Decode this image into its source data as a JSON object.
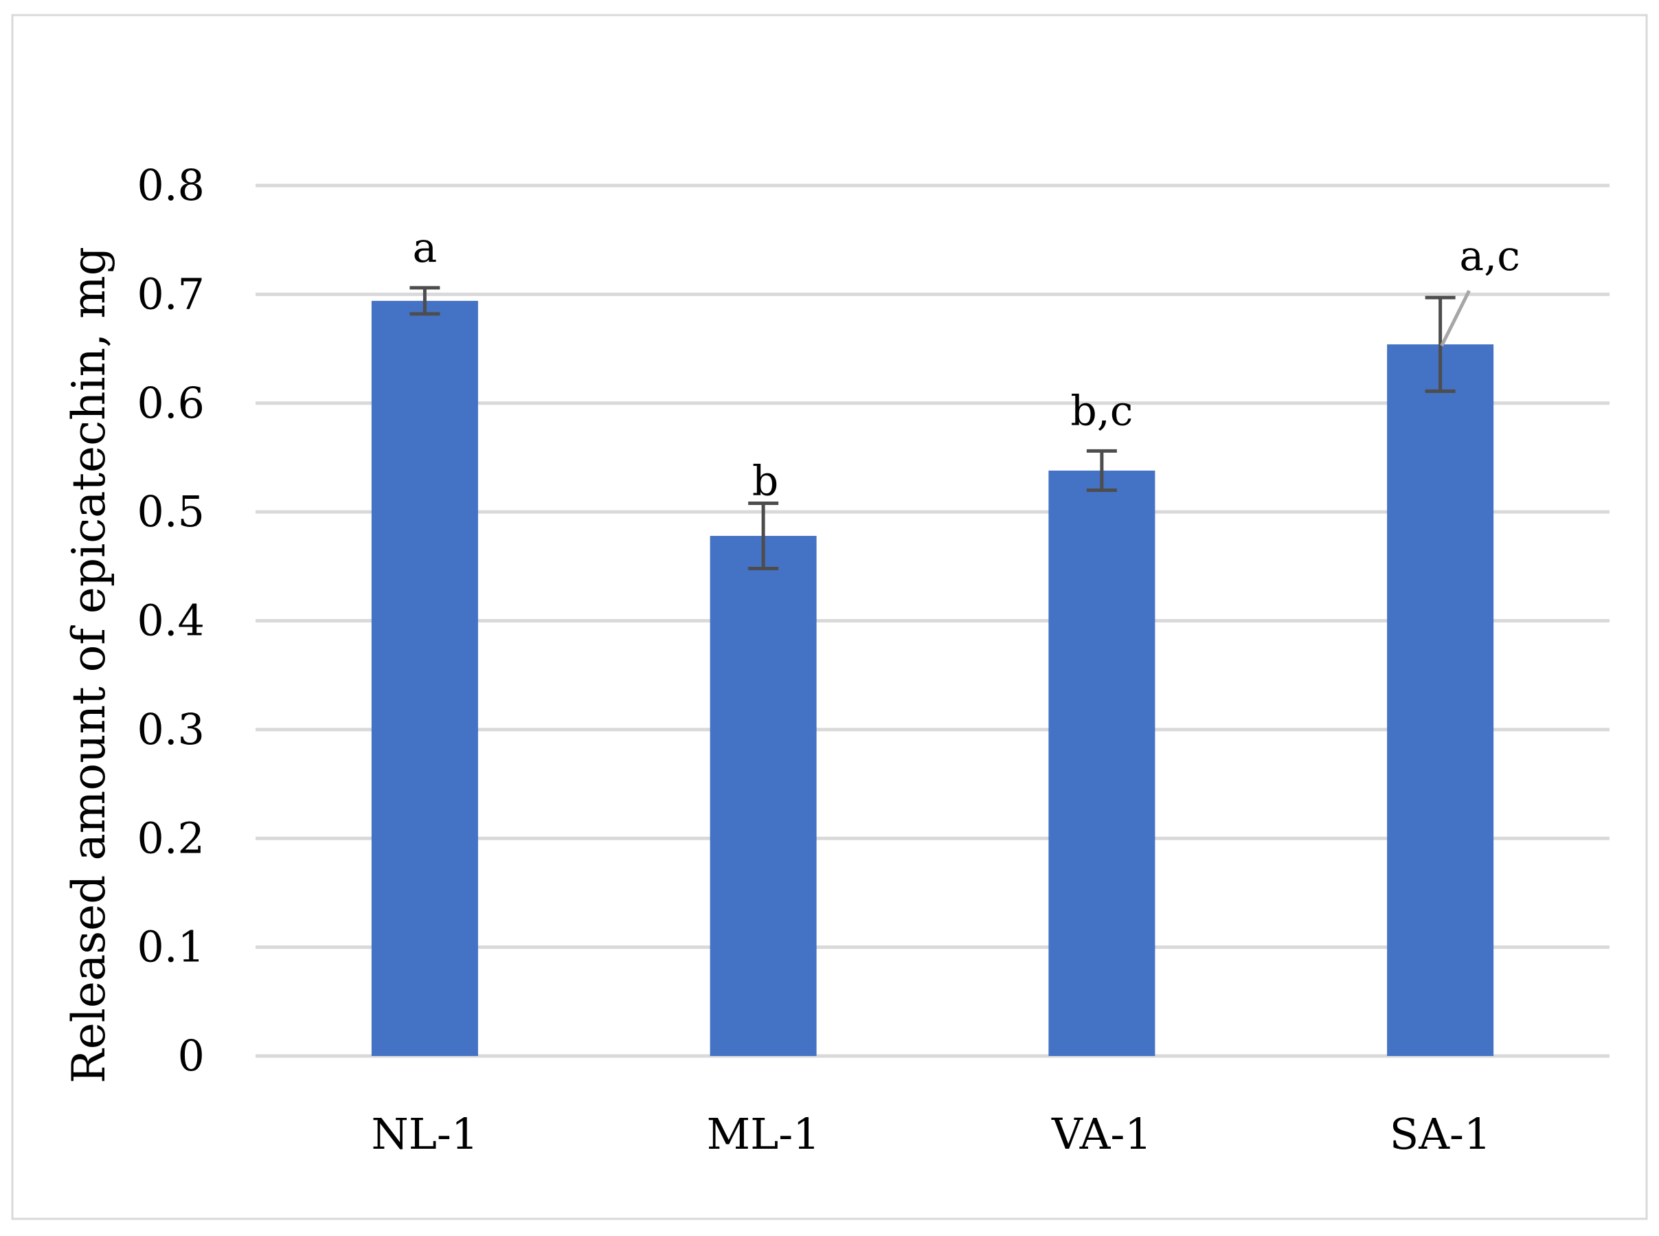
{
  "chart_data": {
    "type": "bar",
    "categories": [
      "NL-1",
      "ML-1",
      "VA-1",
      "SA-1"
    ],
    "values": [
      0.694,
      0.478,
      0.538,
      0.654
    ],
    "errors": [
      0.012,
      0.03,
      0.018,
      0.043
    ],
    "labels": [
      "a",
      "b",
      "b,c",
      "a,c"
    ],
    "ylabel": "Released amount of epicatechin, mg",
    "ylim": [
      0,
      0.8
    ],
    "yticks": [
      "0",
      "0.1",
      "0.2",
      "0.3",
      "0.4",
      "0.5",
      "0.6",
      "0.7",
      "0.8"
    ],
    "grid": true,
    "legend": "none",
    "colors": {
      "bar": "#4472C4",
      "error_bar": "#4D4D4D",
      "grid": "#D9D9D9",
      "frame": "#D9D9D9",
      "leader": "#A6A6A6"
    }
  }
}
